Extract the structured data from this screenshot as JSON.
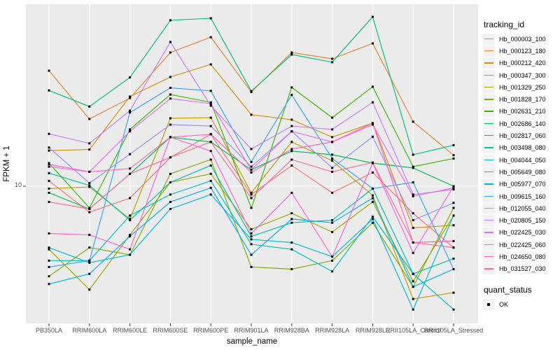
{
  "figure": {
    "background": "#ffffff",
    "panel_background": "#ebebeb",
    "grid_color": "#ffffff",
    "point_color": "#000000"
  },
  "axes": {
    "x": {
      "title": "sample_name",
      "categories": [
        "PB350LA",
        "RRIM600LA",
        "RRIM600LE",
        "RRIM600SE",
        "RRIM600PE",
        "RRIM901LA",
        "RRIM928BA",
        "RRIM928LA",
        "RRIM928LE",
        "RRII105LA_Control",
        "RRII105LA_Stressed"
      ]
    },
    "y": {
      "title": "FPKM + 1",
      "tick_label": "10",
      "scale": "log10"
    }
  },
  "legend": {
    "tracking_title": "tracking_id",
    "quant_title": "quant_status",
    "quant_label": "OK",
    "quant_key_shape": "filled-black-square"
  },
  "chart_data": {
    "type": "line",
    "title": "",
    "xlabel": "sample_name",
    "ylabel": "FPKM + 1",
    "y_scale": "log10",
    "ylim": [
      1.8,
      102
    ],
    "grid": "major-only",
    "legend_position": "right",
    "point_shape": "filled-square",
    "x": [
      "PB350LA",
      "RRIM600LA",
      "RRIM600LE",
      "RRIM600SE",
      "RRIM600PE",
      "RRIM901LA",
      "RRIM928BA",
      "RRIM928LA",
      "RRIM928LE",
      "RRII105LA_Control",
      "RRII105LA_Stressed"
    ],
    "series": [
      {
        "name": "Hb_000003_100",
        "color": "#F8766D",
        "quant_status": "OK",
        "values": [
          10.7,
          7.2,
          8.6,
          14.4,
          19.3,
          9.0,
          13.0,
          9.2,
          11.9,
          7.1,
          4.6
        ]
      },
      {
        "name": "Hb_000123_180",
        "color": "#EA8331",
        "quant_status": "OK",
        "values": [
          43.1,
          23.4,
          30.5,
          54.3,
          65.9,
          32.9,
          54.3,
          50.1,
          60.9,
          22.6,
          14.8
        ]
      },
      {
        "name": "Hb_000212_420",
        "color": "#D89000",
        "quant_status": "OK",
        "values": [
          15.7,
          15.9,
          31.1,
          39.8,
          46.7,
          24.7,
          23.2,
          18.6,
          22.2,
          5.9,
          6.1
        ]
      },
      {
        "name": "Hb_000347_300",
        "color": "#C09B00",
        "quant_status": "OK",
        "values": [
          9.7,
          9.9,
          6.6,
          23.6,
          23.8,
          9.2,
          17.5,
          13.8,
          8.9,
          2.4,
          2.6
        ]
      },
      {
        "name": "Hb_001329_250",
        "color": "#A3A500",
        "quant_status": "OK",
        "values": [
          4.5,
          2.7,
          5.4,
          10.5,
          11.7,
          5.8,
          7.1,
          5.6,
          8.2,
          3.0,
          6.9
        ]
      },
      {
        "name": "Hb_001828_170",
        "color": "#7CAE00",
        "quant_status": "OK",
        "values": [
          3.2,
          4.6,
          4.2,
          11.7,
          14.0,
          3.6,
          3.5,
          3.9,
          6.3,
          2.8,
          7.6
        ]
      },
      {
        "name": "Hb_002631_210",
        "color": "#39B600",
        "quant_status": "OK",
        "values": [
          13.4,
          7.6,
          20.5,
          31.9,
          28.9,
          7.6,
          34.9,
          23.8,
          35.2,
          12.8,
          14.2
        ]
      },
      {
        "name": "Hb_002686_140",
        "color": "#00BB4E",
        "quant_status": "OK",
        "values": [
          9.2,
          7.5,
          11.7,
          18.6,
          17.5,
          12.3,
          15.6,
          14.9,
          13.4,
          12.6,
          10.0
        ]
      },
      {
        "name": "Hb_002817_060",
        "color": "#00BF7D",
        "quant_status": "OK",
        "values": [
          33.6,
          27.4,
          39.6,
          81.6,
          83.7,
          33.3,
          52.9,
          48.0,
          85.3,
          14.9,
          16.8
        ]
      },
      {
        "name": "Hb_003498_080",
        "color": "#00C1A3",
        "quant_status": "OK",
        "values": [
          11.8,
          10.1,
          6.5,
          10.5,
          13.0,
          5.3,
          6.3,
          6.5,
          9.7,
          3.3,
          4.0
        ]
      },
      {
        "name": "Hb_004044_050",
        "color": "#00BFC4",
        "quant_status": "OK",
        "values": [
          3.9,
          3.9,
          6.9,
          9.0,
          10.7,
          4.8,
          4.5,
          3.4,
          6.8,
          3.3,
          2.1
        ]
      },
      {
        "name": "Hb_005649_080",
        "color": "#00BADE",
        "quant_status": "OK",
        "values": [
          4.6,
          3.8,
          4.2,
          7.5,
          9.0,
          5.1,
          4.9,
          4.1,
          6.6,
          2.1,
          6.9
        ]
      },
      {
        "name": "Hb_005977_070",
        "color": "#00B0F6",
        "quant_status": "OK",
        "values": [
          2.9,
          3.3,
          5.3,
          8.2,
          9.8,
          4.2,
          6.6,
          6.3,
          8.6,
          2.8,
          3.5
        ]
      },
      {
        "name": "Hb_009615_160",
        "color": "#35A2FF",
        "quant_status": "OK",
        "values": [
          3.6,
          3.9,
          25.4,
          34.7,
          33.4,
          13.6,
          31.7,
          14.2,
          9.7,
          10.5,
          3.5
        ]
      },
      {
        "name": "Hb_012055_040",
        "color": "#9590FF",
        "quant_status": "OK",
        "values": [
          16.3,
          10.4,
          15.0,
          21.8,
          21.4,
          12.8,
          20.0,
          12.6,
          18.7,
          6.5,
          8.1
        ]
      },
      {
        "name": "Hb_020805_150",
        "color": "#C77CFF",
        "quant_status": "OK",
        "values": [
          19.4,
          17.2,
          26.0,
          62.0,
          27.7,
          16.0,
          21.4,
          20.5,
          28.9,
          9.0,
          9.6
        ]
      },
      {
        "name": "Hb_022425_030",
        "color": "#E76BF3",
        "quant_status": "OK",
        "values": [
          12.8,
          12.0,
          20.0,
          30.3,
          28.4,
          12.3,
          20.0,
          17.5,
          21.8,
          8.8,
          9.8
        ]
      },
      {
        "name": "Hb_022425_060",
        "color": "#FA62DB",
        "quant_status": "OK",
        "values": [
          5.5,
          5.4,
          4.5,
          18.6,
          15.6,
          5.5,
          9.2,
          4.1,
          13.4,
          4.3,
          10.0
        ]
      },
      {
        "name": "Hb_024650_080",
        "color": "#FF62BC",
        "quant_status": "OK",
        "values": [
          13.2,
          12.0,
          12.5,
          18.6,
          19.3,
          11.9,
          16.0,
          17.5,
          22.2,
          4.9,
          5.0
        ]
      },
      {
        "name": "Hb_031527_030",
        "color": "#FF6A98",
        "quant_status": "OK",
        "values": [
          8.2,
          7.5,
          11.7,
          14.4,
          17.5,
          8.6,
          14.0,
          12.0,
          13.5,
          4.9,
          4.6
        ]
      }
    ]
  }
}
